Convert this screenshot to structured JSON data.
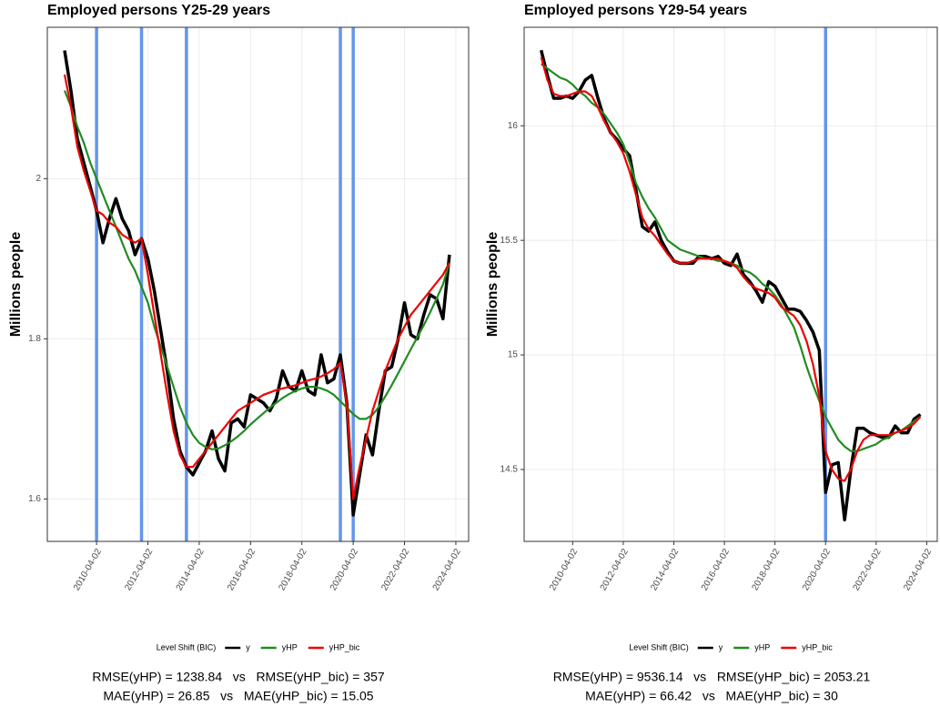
{
  "chart_data": [
    {
      "type": "line",
      "title": "Employed persons Y25-29 years",
      "y_label": "Millions people",
      "x": [
        "2009-01-02",
        "2009-04-02",
        "2009-07-02",
        "2009-10-02",
        "2010-01-02",
        "2010-04-02",
        "2010-07-02",
        "2010-10-02",
        "2011-01-02",
        "2011-04-02",
        "2011-07-02",
        "2011-10-02",
        "2012-01-02",
        "2012-04-02",
        "2012-07-02",
        "2012-10-02",
        "2013-01-02",
        "2013-04-02",
        "2013-07-02",
        "2013-10-02",
        "2014-01-02",
        "2014-04-02",
        "2014-07-02",
        "2014-10-02",
        "2015-01-02",
        "2015-04-02",
        "2015-07-02",
        "2015-10-02",
        "2016-01-02",
        "2016-04-02",
        "2016-07-02",
        "2016-10-02",
        "2017-01-02",
        "2017-04-02",
        "2017-07-02",
        "2017-10-02",
        "2018-01-02",
        "2018-04-02",
        "2018-07-02",
        "2018-10-02",
        "2019-01-02",
        "2019-04-02",
        "2019-07-02",
        "2019-10-02",
        "2020-01-02",
        "2020-04-02",
        "2020-07-02",
        "2020-10-02",
        "2021-01-02",
        "2021-04-02",
        "2021-07-02",
        "2021-10-02",
        "2022-01-02",
        "2022-04-02",
        "2022-07-02",
        "2022-10-02",
        "2023-01-02",
        "2023-04-02",
        "2023-07-02",
        "2023-10-02",
        "2024-01-02"
      ],
      "series": [
        {
          "name": "y",
          "color": "#000000",
          "values": [
            2.16,
            2.11,
            2.05,
            2.02,
            1.99,
            1.96,
            1.92,
            1.95,
            1.975,
            1.95,
            1.935,
            1.905,
            1.925,
            1.9,
            1.86,
            1.81,
            1.76,
            1.7,
            1.66,
            1.64,
            1.63,
            1.645,
            1.66,
            1.685,
            1.65,
            1.635,
            1.695,
            1.7,
            1.69,
            1.73,
            1.725,
            1.72,
            1.71,
            1.725,
            1.76,
            1.74,
            1.735,
            1.76,
            1.735,
            1.73,
            1.78,
            1.745,
            1.75,
            1.78,
            1.72,
            1.58,
            1.63,
            1.68,
            1.655,
            1.71,
            1.76,
            1.765,
            1.8,
            1.845,
            1.805,
            1.8,
            1.83,
            1.855,
            1.85,
            1.825,
            1.905
          ]
        },
        {
          "name": "yHP",
          "color": "#228b22",
          "values": [
            2.11,
            2.09,
            2.065,
            2.045,
            2.02,
            2.0,
            1.98,
            1.96,
            1.94,
            1.92,
            1.9,
            1.885,
            1.865,
            1.845,
            1.815,
            1.79,
            1.765,
            1.74,
            1.715,
            1.695,
            1.68,
            1.67,
            1.665,
            1.662,
            1.663,
            1.667,
            1.672,
            1.678,
            1.685,
            1.693,
            1.7,
            1.707,
            1.714,
            1.72,
            1.726,
            1.731,
            1.735,
            1.738,
            1.74,
            1.74,
            1.738,
            1.735,
            1.73,
            1.722,
            1.714,
            1.706,
            1.7,
            1.7,
            1.705,
            1.715,
            1.728,
            1.742,
            1.757,
            1.772,
            1.787,
            1.802,
            1.817,
            1.833,
            1.85,
            1.868,
            1.895
          ]
        },
        {
          "name": "yHP_bic",
          "color": "#ee0000",
          "values": [
            2.13,
            2.09,
            2.04,
            2.01,
            1.985,
            1.96,
            1.955,
            1.945,
            1.94,
            1.93,
            1.925,
            1.92,
            1.925,
            1.88,
            1.83,
            1.78,
            1.73,
            1.685,
            1.655,
            1.64,
            1.64,
            1.65,
            1.66,
            1.67,
            1.68,
            1.69,
            1.7,
            1.71,
            1.715,
            1.72,
            1.725,
            1.73,
            1.733,
            1.736,
            1.738,
            1.74,
            1.742,
            1.745,
            1.748,
            1.75,
            1.753,
            1.757,
            1.762,
            1.77,
            1.72,
            1.6,
            1.64,
            1.675,
            1.71,
            1.735,
            1.76,
            1.78,
            1.8,
            1.815,
            1.83,
            1.84,
            1.85,
            1.86,
            1.87,
            1.88,
            1.895
          ]
        }
      ],
      "level_shifts": [
        "2010-04-02",
        "2012-01-02",
        "2013-10-02",
        "2019-10-02",
        "2020-04-02"
      ],
      "level_shift_color": "#6495ed",
      "legend_title": "Level Shift (BIC)",
      "xlim": [
        "2008-05-01",
        "2024-10-01"
      ],
      "xticks": [
        "2010-04-02",
        "2012-04-02",
        "2014-04-02",
        "2016-04-02",
        "2018-04-02",
        "2020-04-02",
        "2022-04-02",
        "2024-04-02"
      ],
      "ylim": [
        1.547,
        2.189
      ],
      "yticks": [
        1.6,
        1.8,
        2.0
      ],
      "grid": true,
      "annotations": [
        "RMSE(yHP) = 1238.84   vs   RMSE(yHP_bic) = 357",
        "MAE(yHP) = 26.85   vs   MAE(yHP_bic) = 15.05"
      ]
    },
    {
      "type": "line",
      "title": "Employed persons Y29-54 years",
      "y_label": "Millions people",
      "x": [
        "2009-01-02",
        "2009-04-02",
        "2009-07-02",
        "2009-10-02",
        "2010-01-02",
        "2010-04-02",
        "2010-07-02",
        "2010-10-02",
        "2011-01-02",
        "2011-04-02",
        "2011-07-02",
        "2011-10-02",
        "2012-01-02",
        "2012-04-02",
        "2012-07-02",
        "2012-10-02",
        "2013-01-02",
        "2013-04-02",
        "2013-07-02",
        "2013-10-02",
        "2014-01-02",
        "2014-04-02",
        "2014-07-02",
        "2014-10-02",
        "2015-01-02",
        "2015-04-02",
        "2015-07-02",
        "2015-10-02",
        "2016-01-02",
        "2016-04-02",
        "2016-07-02",
        "2016-10-02",
        "2017-01-02",
        "2017-04-02",
        "2017-07-02",
        "2017-10-02",
        "2018-01-02",
        "2018-04-02",
        "2018-07-02",
        "2018-10-02",
        "2019-01-02",
        "2019-04-02",
        "2019-07-02",
        "2019-10-02",
        "2020-01-02",
        "2020-04-02",
        "2020-07-02",
        "2020-10-02",
        "2021-01-02",
        "2021-04-02",
        "2021-07-02",
        "2021-10-02",
        "2022-01-02",
        "2022-04-02",
        "2022-07-02",
        "2022-10-02",
        "2023-01-02",
        "2023-04-02",
        "2023-07-02",
        "2023-10-02",
        "2024-01-02"
      ],
      "series": [
        {
          "name": "y",
          "color": "#000000",
          "values": [
            16.33,
            16.22,
            16.12,
            16.12,
            16.13,
            16.12,
            16.15,
            16.2,
            16.22,
            16.12,
            16.03,
            15.97,
            15.94,
            15.9,
            15.87,
            15.72,
            15.56,
            15.54,
            15.58,
            15.5,
            15.45,
            15.41,
            15.4,
            15.4,
            15.4,
            15.43,
            15.43,
            15.42,
            15.43,
            15.4,
            15.39,
            15.44,
            15.35,
            15.32,
            15.28,
            15.23,
            15.32,
            15.3,
            15.25,
            15.2,
            15.2,
            15.19,
            15.15,
            15.1,
            15.02,
            14.4,
            14.52,
            14.53,
            14.28,
            14.5,
            14.68,
            14.68,
            14.66,
            14.65,
            14.64,
            14.64,
            14.69,
            14.66,
            14.66,
            14.72,
            14.74
          ]
        },
        {
          "name": "yHP",
          "color": "#228b22",
          "values": [
            16.27,
            16.25,
            16.23,
            16.21,
            16.2,
            16.18,
            16.15,
            16.13,
            16.1,
            16.08,
            16.05,
            16.01,
            15.97,
            15.92,
            15.84,
            15.75,
            15.69,
            15.64,
            15.6,
            15.55,
            15.5,
            15.48,
            15.46,
            15.45,
            15.44,
            15.43,
            15.42,
            15.42,
            15.41,
            15.41,
            15.4,
            15.39,
            15.37,
            15.36,
            15.34,
            15.31,
            15.29,
            15.26,
            15.22,
            15.17,
            15.12,
            15.04,
            14.95,
            14.87,
            14.8,
            14.73,
            14.68,
            14.63,
            14.6,
            14.58,
            14.58,
            14.59,
            14.6,
            14.61,
            14.63,
            14.64,
            14.66,
            14.67,
            14.69,
            14.71,
            14.73
          ]
        },
        {
          "name": "yHP_bic",
          "color": "#ee0000",
          "values": [
            16.3,
            16.2,
            16.14,
            16.13,
            16.13,
            16.14,
            16.15,
            16.15,
            16.13,
            16.08,
            16.02,
            15.97,
            15.93,
            15.88,
            15.8,
            15.7,
            15.6,
            15.55,
            15.52,
            15.48,
            15.44,
            15.41,
            15.4,
            15.4,
            15.41,
            15.42,
            15.42,
            15.42,
            15.42,
            15.41,
            15.4,
            15.38,
            15.34,
            15.31,
            15.29,
            15.28,
            15.27,
            15.25,
            15.21,
            15.19,
            15.17,
            15.13,
            15.06,
            14.96,
            14.82,
            14.58,
            14.5,
            14.46,
            14.45,
            14.5,
            14.58,
            14.63,
            14.65,
            14.65,
            14.65,
            14.65,
            14.66,
            14.67,
            14.68,
            14.7,
            14.73
          ]
        }
      ],
      "level_shifts": [
        "2020-04-02"
      ],
      "level_shift_color": "#6495ed",
      "legend_title": "Level Shift (BIC)",
      "xlim": [
        "2008-05-01",
        "2024-09-01"
      ],
      "xticks": [
        "2010-04-02",
        "2012-04-02",
        "2014-04-02",
        "2016-04-02",
        "2018-04-02",
        "2020-04-02",
        "2022-04-02",
        "2024-04-02"
      ],
      "ylim": [
        14.186,
        16.43
      ],
      "yticks": [
        14.5,
        15.0,
        15.5,
        16.0
      ],
      "grid": true,
      "annotations": [
        "RMSE(yHP) = 9536.14   vs   RMSE(yHP_bic) = 2053.21",
        "MAE(yHP) = 66.42   vs   MAE(yHP_bic) = 30"
      ]
    }
  ]
}
